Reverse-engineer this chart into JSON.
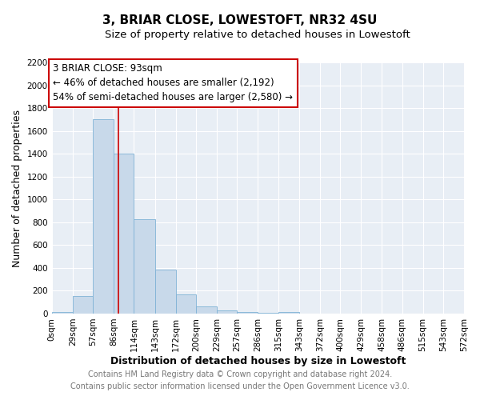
{
  "title": "3, BRIAR CLOSE, LOWESTOFT, NR32 4SU",
  "subtitle": "Size of property relative to detached houses in Lowestoft",
  "xlabel": "Distribution of detached houses by size in Lowestoft",
  "ylabel": "Number of detached properties",
  "bar_edges": [
    0,
    29,
    57,
    86,
    114,
    143,
    172,
    200,
    229,
    257,
    286,
    315,
    343,
    372,
    400,
    429,
    458,
    486,
    515,
    543,
    572
  ],
  "bar_heights": [
    15,
    155,
    1700,
    1400,
    830,
    385,
    165,
    65,
    30,
    15,
    5,
    15,
    0,
    0,
    0,
    0,
    0,
    0,
    0,
    0
  ],
  "bar_color": "#c8d9ea",
  "bar_edgecolor": "#7fb2d5",
  "vline_x": 93,
  "vline_color": "#cc0000",
  "annotation_title": "3 BRIAR CLOSE: 93sqm",
  "annotation_line1": "← 46% of detached houses are smaller (2,192)",
  "annotation_line2": "54% of semi-detached houses are larger (2,580) →",
  "annotation_box_edgecolor": "#cc0000",
  "ylim": [
    0,
    2200
  ],
  "yticks": [
    0,
    200,
    400,
    600,
    800,
    1000,
    1200,
    1400,
    1600,
    1800,
    2000,
    2200
  ],
  "xtick_labels": [
    "0sqm",
    "29sqm",
    "57sqm",
    "86sqm",
    "114sqm",
    "143sqm",
    "172sqm",
    "200sqm",
    "229sqm",
    "257sqm",
    "286sqm",
    "315sqm",
    "343sqm",
    "372sqm",
    "400sqm",
    "429sqm",
    "458sqm",
    "486sqm",
    "515sqm",
    "543sqm",
    "572sqm"
  ],
  "footer1": "Contains HM Land Registry data © Crown copyright and database right 2024.",
  "footer2": "Contains public sector information licensed under the Open Government Licence v3.0.",
  "plot_bg_color": "#e8eef5",
  "fig_bg_color": "#ffffff",
  "grid_color": "#ffffff",
  "title_fontsize": 11,
  "subtitle_fontsize": 9.5,
  "axis_label_fontsize": 9,
  "tick_fontsize": 7.5,
  "annotation_fontsize": 8.5,
  "footer_fontsize": 7
}
